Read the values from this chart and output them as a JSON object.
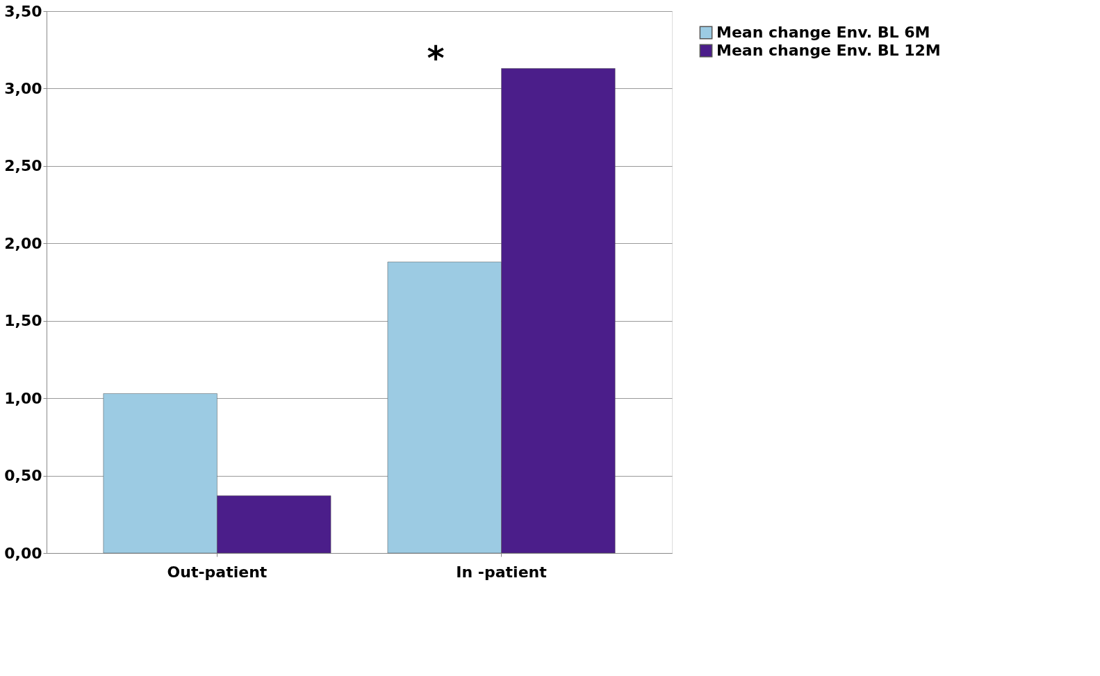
{
  "chart_data": {
    "type": "bar",
    "categories": [
      "Out-patient",
      "In -patient"
    ],
    "series": [
      {
        "name": "Mean change Env. BL 6M",
        "color": "#9ccbe3",
        "values": [
          1.03,
          1.88
        ]
      },
      {
        "name": "Mean change Env. BL 12M",
        "color": "#4b1e8a",
        "values": [
          0.37,
          3.13
        ]
      }
    ],
    "ylim": [
      0,
      3.5
    ],
    "yticks": [
      {
        "value": 0,
        "label": "0,00"
      },
      {
        "value": 0.5,
        "label": "0,50"
      },
      {
        "value": 1,
        "label": "1,00"
      },
      {
        "value": 1.5,
        "label": "1,50"
      },
      {
        "value": 2,
        "label": "2,00"
      },
      {
        "value": 2.5,
        "label": "2,50"
      },
      {
        "value": 3,
        "label": "3,00"
      },
      {
        "value": 3.5,
        "label": "3,50"
      }
    ],
    "annotations": [
      "*"
    ],
    "grid": "y",
    "legend": "right"
  }
}
